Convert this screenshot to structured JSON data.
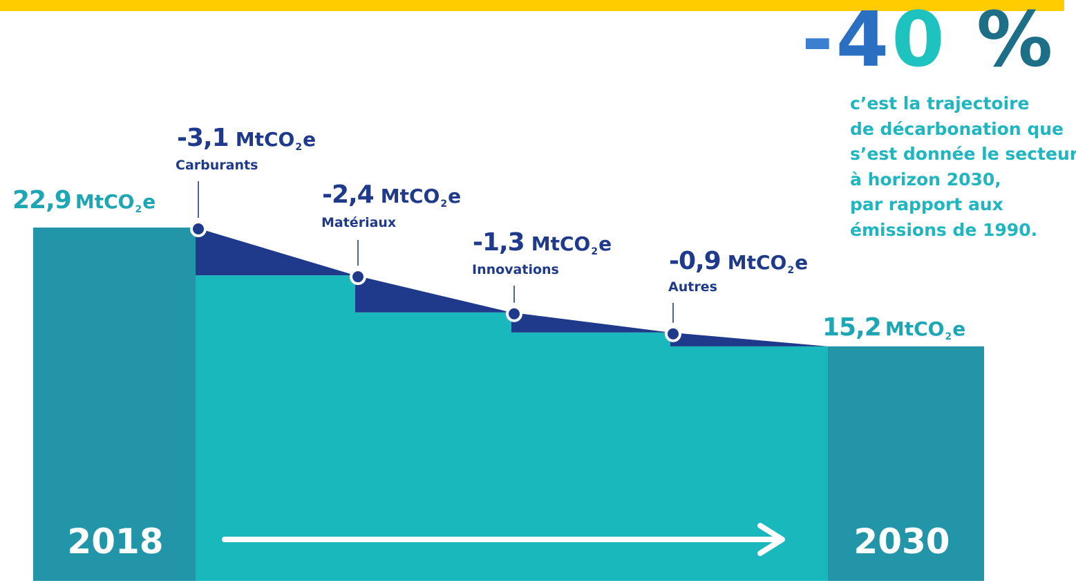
{
  "chart_data": {
    "type": "waterfall",
    "unit": "MtCO2e",
    "start": {
      "year": "2018",
      "value": "22,9",
      "num": 22.9
    },
    "end": {
      "year": "2030",
      "value": "15,2",
      "num": 15.2
    },
    "steps": [
      {
        "label": "Carburants",
        "value": "-3,1",
        "num": -3.1
      },
      {
        "label": "Matériaux",
        "value": "-2,4",
        "num": -2.4
      },
      {
        "label": "Innovations",
        "value": "-1,3",
        "num": -1.3
      },
      {
        "label": "Autres",
        "value": "-0,9",
        "num": -0.9
      }
    ]
  },
  "unit_text": {
    "prefix": "MtCO",
    "sub": "2",
    "suffix": "e"
  },
  "headline": {
    "percent": "-40 %",
    "minus": "-",
    "digit_4": "4",
    "digit_0": "0",
    "percent_sign": "%",
    "lines": [
      "c’est la trajectoire",
      "de décarbonation que",
      "s’est donnée le secteur",
      "à horizon 2030,",
      "par rapport aux",
      "émissions de 1990."
    ]
  },
  "colors": {
    "bar": "#2395a9",
    "fill": "#18b8bd",
    "reduction": "#1f3a8a",
    "label_dark": "#1f3a8a",
    "label_teal": "#1ea6b4",
    "top_band": "#ffcc00"
  }
}
